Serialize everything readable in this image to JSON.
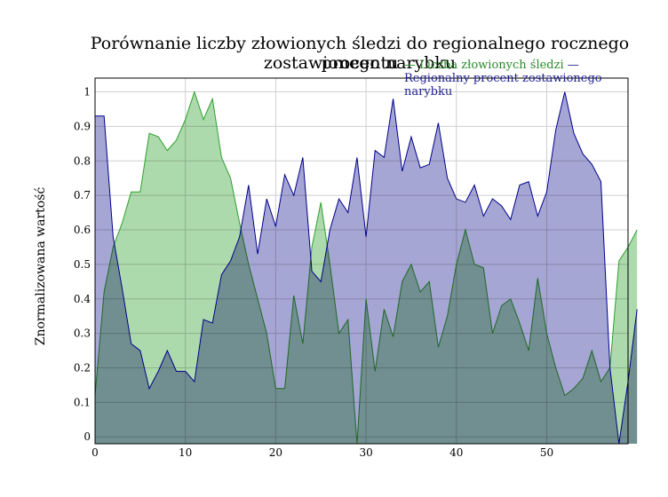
{
  "chart_data": {
    "type": "area",
    "title_line1": "Porównanie liczby złowionych śledzi do regionalnego rocznego procentu",
    "title_line2": "zostawionego narybku",
    "xlabel": "",
    "ylabel": "Znormalizowana wartość",
    "xlim": [
      0,
      59
    ],
    "ylim": [
      -0.02,
      1.04
    ],
    "xticks": [
      0,
      10,
      20,
      30,
      40,
      50
    ],
    "yticks": [
      0,
      0.1,
      0.2,
      0.3,
      0.4,
      0.5,
      0.6,
      0.7,
      0.8,
      0.9,
      1
    ],
    "ytick_labels": [
      "0",
      "0.1",
      "0.2",
      "0.3",
      "0.4",
      "0.5",
      "0.6",
      "0.7",
      "0.8",
      "0.9",
      "1"
    ],
    "grid": true,
    "legend_position": "top-right",
    "series": [
      {
        "name": "Liczba złowionych śledzi",
        "color": "#2ca02c",
        "fill": "#9fd49f",
        "values": [
          0.12,
          0.42,
          0.55,
          0.62,
          0.71,
          0.71,
          0.88,
          0.87,
          0.83,
          0.86,
          0.92,
          1.0,
          0.92,
          0.98,
          0.81,
          0.75,
          0.62,
          0.5,
          0.4,
          0.3,
          0.14,
          0.14,
          0.41,
          0.27,
          0.55,
          0.68,
          0.5,
          0.3,
          0.34,
          -0.02,
          0.4,
          0.19,
          0.37,
          0.29,
          0.45,
          0.5,
          0.42,
          0.45,
          0.26,
          0.35,
          0.5,
          0.6,
          0.5,
          0.49,
          0.3,
          0.38,
          0.4,
          0.33,
          0.25,
          0.46,
          0.3,
          0.2,
          0.12,
          0.14,
          0.17,
          0.25,
          0.16,
          0.2,
          0.51,
          0.55,
          0.6
        ]
      },
      {
        "name": "Regionalny procent zostawionego narybku",
        "color": "#00008b",
        "fill": "#9797cc",
        "values": [
          0.93,
          0.93,
          0.58,
          0.43,
          0.27,
          0.25,
          0.14,
          0.19,
          0.25,
          0.19,
          0.19,
          0.16,
          0.34,
          0.33,
          0.47,
          0.51,
          0.58,
          0.73,
          0.53,
          0.69,
          0.61,
          0.76,
          0.7,
          0.81,
          0.48,
          0.45,
          0.6,
          0.69,
          0.65,
          0.81,
          0.58,
          0.83,
          0.81,
          0.98,
          0.77,
          0.87,
          0.78,
          0.79,
          0.91,
          0.75,
          0.69,
          0.68,
          0.73,
          0.64,
          0.69,
          0.67,
          0.63,
          0.73,
          0.74,
          0.64,
          0.71,
          0.89,
          1.0,
          0.88,
          0.82,
          0.79,
          0.74,
          0.2,
          -0.02,
          0.16,
          0.37
        ]
      }
    ]
  }
}
